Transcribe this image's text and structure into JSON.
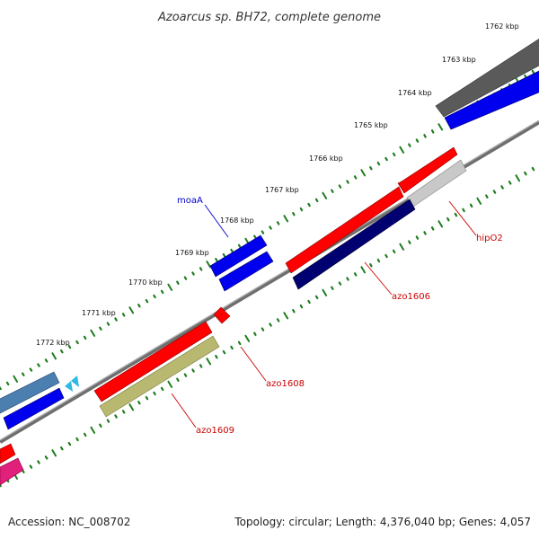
{
  "title": "Azoarcus sp. BH72, complete genome",
  "footer": {
    "accession": "Accession: NC_008702",
    "summary": "Topology: circular; Length: 4,376,040 bp; Genes: 4,057"
  },
  "kbp_labels": [
    "1762 kbp",
    "1763 kbp",
    "1764 kbp",
    "1765 kbp",
    "1766 kbp",
    "1767 kbp",
    "1768 kbp",
    "1769 kbp",
    "1770 kbp",
    "1771 kbp",
    "1772 kbp"
  ],
  "gene_labels": {
    "moaA": "moaA",
    "hipO2": "hipO2",
    "azo1606": "azo1606",
    "azo1608": "azo1608",
    "azo1609": "azo1609"
  },
  "colors": {
    "backbone": "#8c8c8c",
    "tick_green": "#1e7d1e",
    "gene_red": "#ff0000",
    "gene_blue": "#0000ee",
    "gene_navy": "#000070",
    "gene_gray": "#5a5a5a",
    "gene_silver": "#c8c8c8",
    "gene_olive": "#b8b870",
    "gene_steel": "#4a7fb0",
    "gene_pink": "#e0207a",
    "gene_cyan": "#30b8e0",
    "label_blue": "#0000cc",
    "label_red": "#cc0000"
  }
}
